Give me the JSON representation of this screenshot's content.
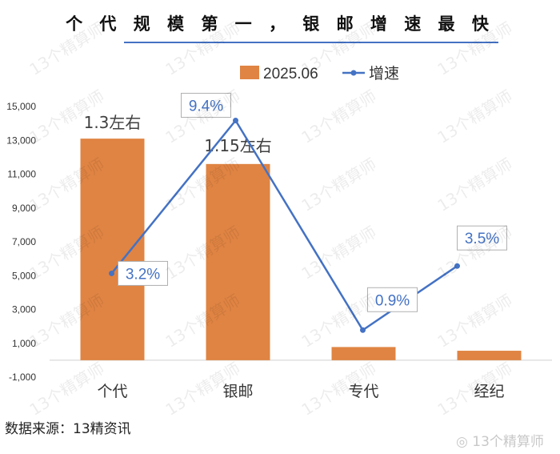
{
  "title": "个 代 规 模 第 一 ， 银 邮 增 速 最 快",
  "source": "数据来源：13精资讯",
  "watermark": "13个精算师",
  "chart_data": {
    "type": "bar",
    "categories": [
      "个代",
      "银邮",
      "专代",
      "经纪"
    ],
    "ylim": [
      -1000,
      15000
    ],
    "yticks": [
      "-1,000",
      "1,000",
      "3,000",
      "5,000",
      "7,000",
      "9,000",
      "11,000",
      "13,000",
      "15,000"
    ],
    "ytick_values": [
      -1000,
      1000,
      3000,
      5000,
      7000,
      9000,
      11000,
      13000,
      15000
    ],
    "series": [
      {
        "name": "2025.06",
        "type": "bar",
        "color": "#E08443",
        "values": [
          13100,
          11600,
          780,
          560
        ],
        "labels": [
          "1.3左右",
          "1.15左右",
          "",
          ""
        ]
      },
      {
        "name": "增速",
        "type": "line",
        "color": "#4472C4",
        "values": [
          3.2,
          9.4,
          0.9,
          3.5
        ],
        "labels": [
          "3.2%",
          "9.4%",
          "0.9%",
          "3.5%"
        ]
      }
    ],
    "legend": "top-right"
  }
}
